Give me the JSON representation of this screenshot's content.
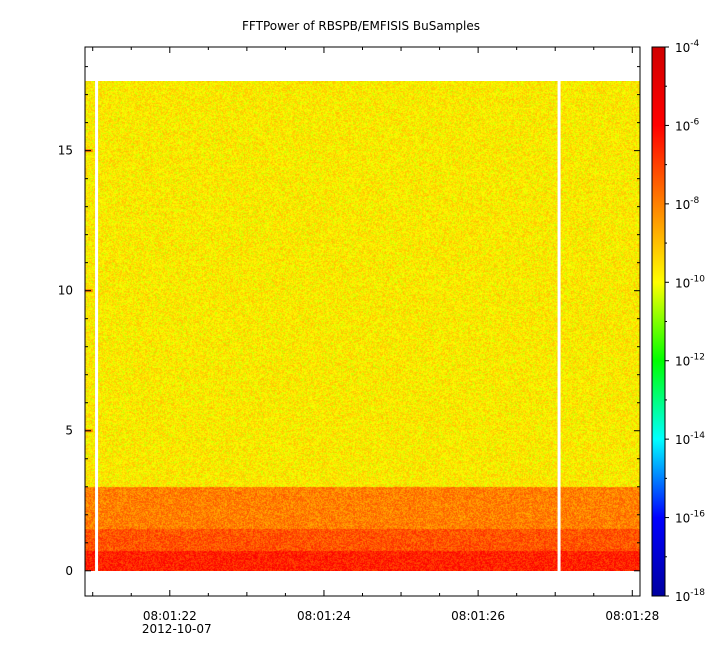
{
  "chart_data": {
    "type": "heatmap",
    "title": "FFTPower of RBSPB/EMFISIS  BuSamples",
    "xlabel": "",
    "ylabel": "",
    "x_range": [
      "08:01:20.9",
      "08:01:28.1"
    ],
    "x_ticks": [
      {
        "time": "08:01:22",
        "label": "08:01:22",
        "sublabel": "2012-10-07"
      },
      {
        "time": "08:01:24",
        "label": "08:01:24",
        "sublabel": ""
      },
      {
        "time": "08:01:26",
        "label": "08:01:26",
        "sublabel": ""
      },
      {
        "time": "08:01:28",
        "label": "08:01:28",
        "sublabel": ""
      }
    ],
    "y_range": [
      -0.9,
      18.7
    ],
    "y_ticks": [
      {
        "value": 0,
        "label": "0"
      },
      {
        "value": 5,
        "label": "5"
      },
      {
        "value": 10,
        "label": "10"
      },
      {
        "value": 15,
        "label": "15"
      }
    ],
    "data_y_range": [
      0,
      17.5
    ],
    "colorbar": {
      "scale": "log",
      "range": [
        1e-18,
        0.0001
      ],
      "ticks": [
        {
          "value": 0.0001,
          "base": "10",
          "exp": "-4"
        },
        {
          "value": 1e-06,
          "base": "10",
          "exp": "-6"
        },
        {
          "value": 1e-08,
          "base": "10",
          "exp": "-8"
        },
        {
          "value": 1e-10,
          "base": "10",
          "exp": "-10"
        },
        {
          "value": 1e-12,
          "base": "10",
          "exp": "-12"
        },
        {
          "value": 1e-14,
          "base": "10",
          "exp": "-14"
        },
        {
          "value": 1e-16,
          "base": "10",
          "exp": "-16"
        },
        {
          "value": 1e-18,
          "base": "10",
          "exp": "-18"
        }
      ],
      "colormap": [
        "#0000a0",
        "#0000ff",
        "#00ffff",
        "#00ff00",
        "#ffff00",
        "#ff8000",
        "#ff0000",
        "#d00000"
      ]
    },
    "power_levels": [
      {
        "y_from": 0.0,
        "y_to": 0.3,
        "value": 3e-07
      },
      {
        "y_from": 0.3,
        "y_to": 0.7,
        "value": 3e-07
      },
      {
        "y_from": 0.7,
        "y_to": 1.5,
        "value": 5e-08
      },
      {
        "y_from": 1.5,
        "y_to": 3.0,
        "value": 1e-08
      },
      {
        "y_from": 3.0,
        "y_to": 17.5,
        "value": 2e-10
      }
    ],
    "harmonic_lines": [
      {
        "y": 5,
        "x_to": "08:01:21.0",
        "value": 1e-08
      },
      {
        "y": 10,
        "x_to": "08:01:21.0",
        "value": 1e-08
      },
      {
        "y": 15,
        "x_to": "08:01:21.0",
        "value": 1e-08
      }
    ],
    "data_gaps": [
      "08:01:21.05",
      "08:01:27.05"
    ]
  }
}
